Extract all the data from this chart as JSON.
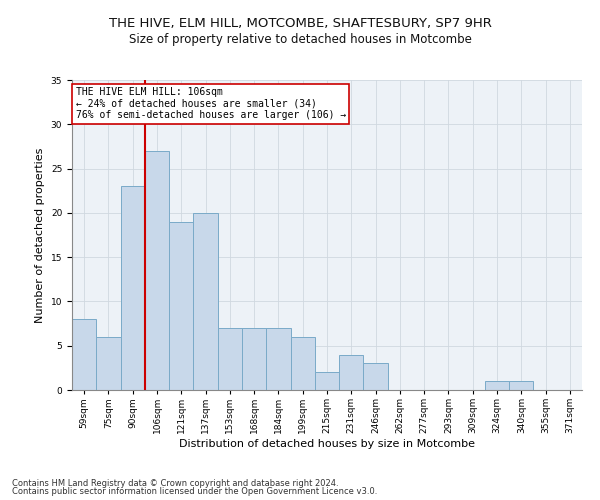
{
  "title": "THE HIVE, ELM HILL, MOTCOMBE, SHAFTESBURY, SP7 9HR",
  "subtitle": "Size of property relative to detached houses in Motcombe",
  "xlabel": "Distribution of detached houses by size in Motcombe",
  "ylabel": "Number of detached properties",
  "bin_labels": [
    "59sqm",
    "75sqm",
    "90sqm",
    "106sqm",
    "121sqm",
    "137sqm",
    "153sqm",
    "168sqm",
    "184sqm",
    "199sqm",
    "215sqm",
    "231sqm",
    "246sqm",
    "262sqm",
    "277sqm",
    "293sqm",
    "309sqm",
    "324sqm",
    "340sqm",
    "355sqm",
    "371sqm"
  ],
  "bar_values": [
    8,
    6,
    23,
    27,
    19,
    20,
    7,
    7,
    7,
    6,
    2,
    4,
    3,
    0,
    0,
    0,
    0,
    1,
    1,
    0,
    0
  ],
  "bar_color": "#c8d8ea",
  "bar_edgecolor": "#7aaac8",
  "bar_linewidth": 0.7,
  "vline_color": "#cc0000",
  "vline_linewidth": 1.5,
  "annotation_text": "THE HIVE ELM HILL: 106sqm\n← 24% of detached houses are smaller (34)\n76% of semi-detached houses are larger (106) →",
  "annotation_box_edgecolor": "#cc0000",
  "annotation_box_facecolor": "#ffffff",
  "ylim": [
    0,
    35
  ],
  "yticks": [
    0,
    5,
    10,
    15,
    20,
    25,
    30,
    35
  ],
  "grid_color": "#d0d8e0",
  "background_color": "#edf2f7",
  "footer_line1": "Contains HM Land Registry data © Crown copyright and database right 2024.",
  "footer_line2": "Contains public sector information licensed under the Open Government Licence v3.0.",
  "title_fontsize": 9.5,
  "subtitle_fontsize": 8.5,
  "xlabel_fontsize": 8,
  "ylabel_fontsize": 8,
  "tick_fontsize": 6.5,
  "annotation_fontsize": 7,
  "footer_fontsize": 6
}
